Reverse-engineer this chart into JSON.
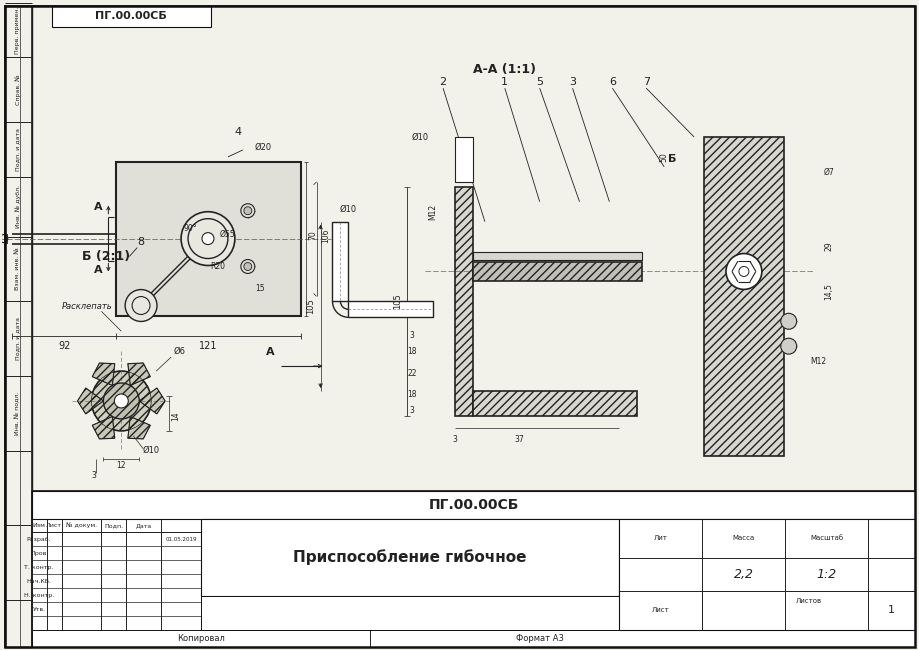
{
  "title": "ПГ.00.00СБ",
  "drawing_title": "Приспособление гибочное",
  "scale": "1:2",
  "mass": "2,2",
  "sheet": "1",
  "sheets": "1",
  "format": "Формат А3",
  "copied": "Копировал",
  "section_label": "А-А (1:1)",
  "node_label": "Б (2:1)",
  "bg_color": "#f2f2ea",
  "line_color": "#222222",
  "border_color": "#111111",
  "white": "#ffffff",
  "gray_fill": "#d8d8d0",
  "hatch_fill": "#c8c8c0",
  "stamp_labels": [
    "Перв. примен.",
    "Справ. №",
    "Подп. и дата",
    "Инв. № дубл.",
    "Взам. инв. №",
    "Подп. и дата",
    "Инв. № подл."
  ],
  "left_stamp_rows": [
    0,
    55,
    120,
    175,
    235,
    300,
    375,
    450,
    525,
    600
  ],
  "tb_left_rows": [
    "Изм",
    "Разраб.",
    "Пров.",
    "Т. контр.",
    "Нач.КБ.",
    "Н. контр.",
    "Утв."
  ],
  "part_numbers": [
    "2",
    "1",
    "5",
    "3",
    "6",
    "7"
  ],
  "dims_main": {
    "width1": "92",
    "width2": "121",
    "h70": "70",
    "h106": "106",
    "r20": "R20",
    "d55": "Ø55",
    "d20": "Ø20",
    "d15": "15"
  },
  "dims_section": {
    "d10": "Ø10",
    "m12_left": "M12",
    "dim50": "50",
    "d7": "Ø7",
    "dim29": "29",
    "dim145": "14,5",
    "m12_right": "M12",
    "dim3a": "3",
    "dim37": "37",
    "dim18a": "18",
    "dim22": "22",
    "dim18b": "18",
    "dim3b": "3",
    "dim105": "105"
  },
  "dims_node": {
    "d6": "Ø6",
    "d10n": "Ø10",
    "dim14": "14",
    "dim12": "12",
    "dim3n": "3"
  }
}
